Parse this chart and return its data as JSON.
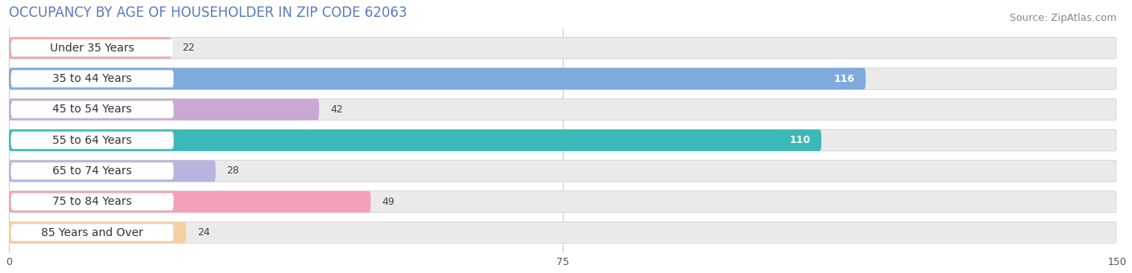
{
  "title": "OCCUPANCY BY AGE OF HOUSEHOLDER IN ZIP CODE 62063",
  "source": "Source: ZipAtlas.com",
  "categories": [
    "Under 35 Years",
    "35 to 44 Years",
    "45 to 54 Years",
    "55 to 64 Years",
    "65 to 74 Years",
    "75 to 84 Years",
    "85 Years and Over"
  ],
  "values": [
    22,
    116,
    42,
    110,
    28,
    49,
    24
  ],
  "bar_colors": [
    "#f0a8a6",
    "#7eaadc",
    "#c9a8d4",
    "#3bb8b8",
    "#b8b4e0",
    "#f4a0b8",
    "#f5d0a0"
  ],
  "bar_bg_color": "#eaeaea",
  "chart_bg_color": "#ffffff",
  "xlim": [
    0,
    150
  ],
  "xticks": [
    0,
    75,
    150
  ],
  "title_fontsize": 12,
  "source_fontsize": 9,
  "label_fontsize": 9,
  "category_fontsize": 10,
  "title_color": "#5a7abf",
  "source_color": "#888888"
}
